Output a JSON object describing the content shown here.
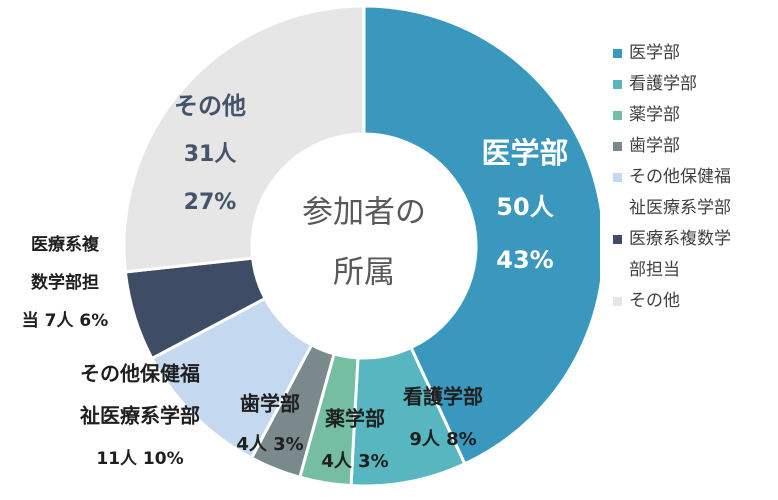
{
  "chart_data": {
    "type": "donut",
    "title": "",
    "center_label": [
      "参加者の",
      "所属"
    ],
    "slices": [
      {
        "name": "医学部",
        "value": 50,
        "percent": "43%",
        "color": "#3a97bd",
        "label_lines": [
          "医学部",
          "50人",
          "43%"
        ]
      },
      {
        "name": "看護学部",
        "value": 9,
        "percent": "8%",
        "color": "#58b6c0",
        "label_lines": [
          "看護学部",
          "9人 8%"
        ]
      },
      {
        "name": "薬学部",
        "value": 4,
        "percent": "3%",
        "color": "#75bea1",
        "label_lines": [
          "薬学部",
          "4人 3%"
        ]
      },
      {
        "name": "歯学部",
        "value": 4,
        "percent": "3%",
        "color": "#7a8a8c",
        "label_lines": [
          "歯学部",
          "4人 3%"
        ]
      },
      {
        "name": "その他保健福祉医療系学部",
        "value": 11,
        "percent": "10%",
        "color": "#c4d9f0",
        "label_lines": [
          "その他保健福",
          "祉医療系学部",
          "11人 10%"
        ]
      },
      {
        "name": "医療系複数学部担当",
        "value": 7,
        "percent": "6%",
        "color": "#3e4d65",
        "label_lines": [
          "医療系複",
          "数学部担",
          "当 7人 6%"
        ]
      },
      {
        "name": "その他",
        "value": 31,
        "percent": "27%",
        "color": "#e6e6e6",
        "label_lines": [
          "その他",
          "31人",
          "27%"
        ]
      }
    ],
    "legend_position": "right"
  },
  "legend": [
    {
      "lines": [
        "医学部"
      ],
      "color": "#3a97bd"
    },
    {
      "lines": [
        "看護学部"
      ],
      "color": "#58b6c0"
    },
    {
      "lines": [
        "薬学部"
      ],
      "color": "#75bea1"
    },
    {
      "lines": [
        "歯学部"
      ],
      "color": "#7a8a8c"
    },
    {
      "lines": [
        "その他保健福",
        "祉医療系学部"
      ],
      "color": "#c4d9f0"
    },
    {
      "lines": [
        "医療系複数学",
        "部担当"
      ],
      "color": "#3e4d65"
    },
    {
      "lines": [
        "その他"
      ],
      "color": "#e6e6e6"
    }
  ]
}
